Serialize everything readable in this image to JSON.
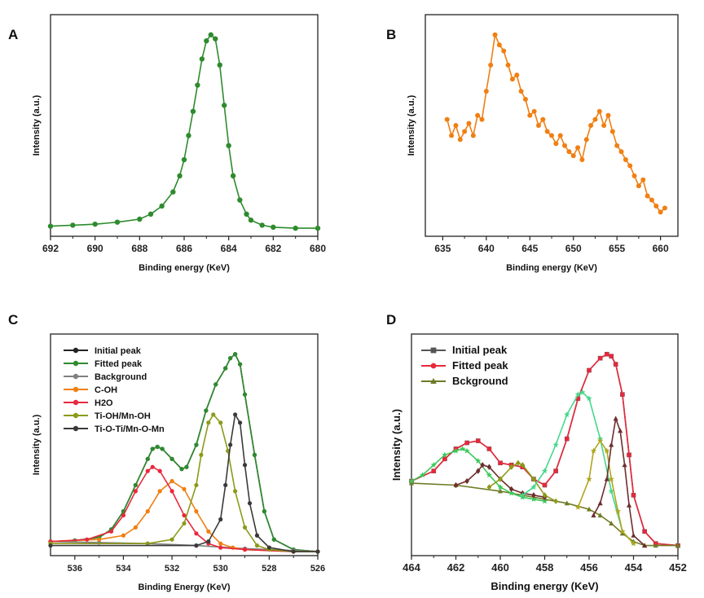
{
  "colors": {
    "green": "#2e8b2e",
    "orange": "#f07f12",
    "black": "#222222",
    "grey": "#808080",
    "red": "#e8283c",
    "olive": "#8c9a1a",
    "darkgrey": "#3a3a3a",
    "teal_green": "#3cc85a",
    "maroon": "#6e2e2e",
    "olive_dark": "#6f7a25",
    "mint": "#46d88c",
    "gold": "#b0a51e",
    "steel": "#4a6fb0"
  },
  "chart_data": [
    {
      "panel": "A",
      "type": "line",
      "xlabel": "Binding energy (KeV)",
      "ylabel": "Intensity (a.u.)",
      "xlim": [
        692,
        680
      ],
      "xticks": [
        692,
        690,
        688,
        686,
        684,
        682,
        680
      ],
      "ylim": [
        0,
        1.1
      ],
      "series": [
        {
          "color": "#2e8b2e",
          "marker": "circle",
          "x": [
            692,
            691,
            690,
            689,
            688,
            687.5,
            687,
            686.5,
            686.2,
            686,
            685.8,
            685.6,
            685.4,
            685.2,
            685,
            684.8,
            684.6,
            684.4,
            684.2,
            684,
            683.8,
            683.5,
            683.2,
            683,
            682.5,
            682,
            681,
            680
          ],
          "y": [
            0.05,
            0.055,
            0.06,
            0.07,
            0.085,
            0.11,
            0.15,
            0.22,
            0.3,
            0.38,
            0.5,
            0.62,
            0.75,
            0.88,
            0.97,
            1.0,
            0.98,
            0.85,
            0.65,
            0.45,
            0.3,
            0.18,
            0.11,
            0.08,
            0.055,
            0.045,
            0.04,
            0.04
          ]
        }
      ]
    },
    {
      "panel": "B",
      "type": "line",
      "xlabel": "Binding energy (KeV)",
      "ylabel": "Intensity (a.u.)",
      "xlim": [
        633,
        662
      ],
      "xticks": [
        635,
        640,
        645,
        650,
        655,
        660
      ],
      "ylim": [
        0,
        1.1
      ],
      "series": [
        {
          "color": "#f07f12",
          "marker": "circle",
          "x": [
            635.5,
            636,
            636.5,
            637,
            637.5,
            638,
            638.5,
            639,
            639.5,
            640,
            640.5,
            641,
            641.5,
            642,
            642.5,
            643,
            643.5,
            644,
            644.5,
            645,
            645.5,
            646,
            646.5,
            647,
            647.5,
            648,
            648.5,
            649,
            649.5,
            650,
            650.5,
            651,
            651.5,
            652,
            652.5,
            653,
            653.5,
            654,
            654.5,
            655,
            655.5,
            656,
            656.5,
            657,
            657.5,
            658,
            658.5,
            659,
            659.5,
            660,
            660.5
          ],
          "y": [
            0.58,
            0.5,
            0.55,
            0.48,
            0.52,
            0.56,
            0.5,
            0.6,
            0.58,
            0.72,
            0.85,
            1.0,
            0.95,
            0.92,
            0.85,
            0.78,
            0.8,
            0.72,
            0.68,
            0.6,
            0.62,
            0.55,
            0.58,
            0.52,
            0.5,
            0.46,
            0.5,
            0.45,
            0.42,
            0.4,
            0.44,
            0.38,
            0.48,
            0.55,
            0.58,
            0.62,
            0.55,
            0.6,
            0.52,
            0.45,
            0.42,
            0.38,
            0.35,
            0.3,
            0.25,
            0.28,
            0.2,
            0.18,
            0.15,
            0.12,
            0.14
          ]
        }
      ]
    },
    {
      "panel": "C",
      "type": "line",
      "xlabel": "Binding Energy (KeV)",
      "ylabel": "Intensity (a.u.)",
      "xlim": [
        537,
        526
      ],
      "xticks": [
        536,
        534,
        532,
        530,
        528,
        526
      ],
      "ylim": [
        0,
        1.1
      ],
      "legend_position": "top-left",
      "series": [
        {
          "name": "Initial peak",
          "color": "#222222",
          "x": [
            537,
            536,
            535,
            534.5,
            534,
            533.5,
            533,
            532.8,
            532.6,
            532.4,
            532,
            531.6,
            531.4,
            531,
            530.6,
            530.2,
            529.8,
            529.6,
            529.4,
            529.2,
            529,
            528.6,
            528.2,
            527.8,
            527,
            526
          ],
          "y": [
            0.07,
            0.075,
            0.09,
            0.13,
            0.22,
            0.35,
            0.48,
            0.53,
            0.54,
            0.53,
            0.48,
            0.43,
            0.44,
            0.55,
            0.72,
            0.85,
            0.93,
            0.98,
            1.0,
            0.95,
            0.8,
            0.5,
            0.22,
            0.08,
            0.03,
            0.02
          ]
        },
        {
          "name": "Fitted peak",
          "color": "#2e8b2e",
          "x": [
            537,
            536,
            535,
            534.5,
            534,
            533.5,
            533,
            532.8,
            532.6,
            532.4,
            532,
            531.6,
            531.4,
            531,
            530.6,
            530.2,
            529.8,
            529.6,
            529.4,
            529.2,
            529,
            528.6,
            528.2,
            527.8,
            527,
            526
          ],
          "y": [
            0.07,
            0.075,
            0.09,
            0.13,
            0.22,
            0.35,
            0.48,
            0.53,
            0.54,
            0.53,
            0.48,
            0.43,
            0.44,
            0.55,
            0.72,
            0.85,
            0.93,
            0.98,
            1.0,
            0.95,
            0.8,
            0.5,
            0.22,
            0.08,
            0.03,
            0.02
          ]
        },
        {
          "name": "Background",
          "color": "#808080",
          "x": [
            537,
            535,
            533,
            531,
            529,
            527,
            526
          ],
          "y": [
            0.07,
            0.065,
            0.06,
            0.05,
            0.035,
            0.025,
            0.02
          ]
        },
        {
          "name": "C-OH",
          "color": "#f07f12",
          "x": [
            537,
            535,
            534,
            533.5,
            533,
            532.5,
            532,
            531.5,
            531,
            530.5,
            530,
            529.5,
            529,
            527,
            526
          ],
          "y": [
            0.07,
            0.08,
            0.1,
            0.14,
            0.22,
            0.32,
            0.37,
            0.33,
            0.22,
            0.12,
            0.06,
            0.04,
            0.03,
            0.02,
            0.02
          ]
        },
        {
          "name": "H2O",
          "color": "#e8283c",
          "x": [
            537,
            535.5,
            534.5,
            534,
            533.5,
            533,
            532.8,
            532.5,
            532,
            531.5,
            531,
            530.5,
            530,
            529,
            527,
            526
          ],
          "y": [
            0.07,
            0.08,
            0.12,
            0.2,
            0.32,
            0.42,
            0.44,
            0.42,
            0.32,
            0.2,
            0.11,
            0.06,
            0.04,
            0.03,
            0.02,
            0.02
          ]
        },
        {
          "name": "Ti-OH/Mn-OH",
          "color": "#8c9a1a",
          "x": [
            537,
            533,
            532,
            531.5,
            531,
            530.8,
            530.5,
            530.3,
            530,
            529.7,
            529.4,
            529,
            528.5,
            528,
            527,
            526
          ],
          "y": [
            0.06,
            0.06,
            0.08,
            0.16,
            0.35,
            0.5,
            0.66,
            0.7,
            0.66,
            0.52,
            0.32,
            0.14,
            0.05,
            0.03,
            0.02,
            0.02
          ]
        },
        {
          "name": "Ti-O-Ti/Mn-O-Mn",
          "color": "#3a3a3a",
          "x": [
            537,
            531,
            530.5,
            530,
            529.8,
            529.6,
            529.4,
            529.2,
            529,
            528.8,
            528.5,
            528,
            527,
            526
          ],
          "y": [
            0.05,
            0.05,
            0.07,
            0.18,
            0.35,
            0.55,
            0.7,
            0.66,
            0.45,
            0.26,
            0.1,
            0.04,
            0.02,
            0.02
          ]
        }
      ]
    },
    {
      "panel": "D",
      "type": "line",
      "xlabel": "Binding energy (KeV)",
      "ylabel": "Intensity (a.u.)",
      "xlim": [
        464,
        452
      ],
      "xticks": [
        464,
        462,
        460,
        458,
        456,
        454,
        452
      ],
      "ylim": [
        0,
        1.1
      ],
      "legend_position": "top-left",
      "series": [
        {
          "name": "Initial peak",
          "color": "#555555",
          "marker": "square",
          "x": [
            464,
            463,
            462.5,
            462,
            461.5,
            461,
            460.5,
            460,
            459.5,
            459,
            458.5,
            458,
            457.5,
            457,
            456.5,
            456,
            455.5,
            455.2,
            455,
            454.8,
            454.5,
            454.2,
            454,
            453.5,
            453,
            452
          ],
          "y": [
            0.37,
            0.42,
            0.48,
            0.53,
            0.56,
            0.57,
            0.53,
            0.46,
            0.45,
            0.44,
            0.38,
            0.35,
            0.42,
            0.58,
            0.78,
            0.92,
            0.98,
            1.0,
            0.99,
            0.95,
            0.8,
            0.5,
            0.3,
            0.12,
            0.06,
            0.05
          ]
        },
        {
          "name": "Fitted peak",
          "color": "#e8283c",
          "marker": "circle",
          "x": [
            464,
            463,
            462.5,
            462,
            461.5,
            461,
            460.5,
            460,
            459.5,
            459,
            458.5,
            458,
            457.5,
            457,
            456.5,
            456,
            455.5,
            455.2,
            455,
            454.8,
            454.5,
            454.2,
            454,
            453.5,
            453,
            452
          ],
          "y": [
            0.37,
            0.42,
            0.48,
            0.53,
            0.56,
            0.57,
            0.53,
            0.46,
            0.45,
            0.44,
            0.38,
            0.35,
            0.42,
            0.58,
            0.78,
            0.92,
            0.98,
            1.0,
            0.99,
            0.95,
            0.8,
            0.5,
            0.3,
            0.12,
            0.06,
            0.05
          ]
        },
        {
          "name": "Bckground",
          "color": "#6f7a25",
          "marker": "triangle",
          "x": [
            464,
            462,
            460,
            458,
            457,
            456,
            455.5,
            455,
            454.5,
            454,
            453.5,
            453,
            452
          ],
          "y": [
            0.36,
            0.35,
            0.32,
            0.28,
            0.26,
            0.23,
            0.2,
            0.16,
            0.11,
            0.07,
            0.05,
            0.05,
            0.05
          ]
        },
        {
          "color": "#3cc85a",
          "marker": "star",
          "x": [
            464,
            463.5,
            463,
            462.5,
            462,
            461.7,
            461.5,
            461,
            460.5,
            460,
            459.5,
            459,
            458.5,
            458
          ],
          "y": [
            0.37,
            0.4,
            0.45,
            0.5,
            0.52,
            0.53,
            0.52,
            0.47,
            0.4,
            0.34,
            0.31,
            0.29,
            0.28,
            0.27
          ]
        },
        {
          "color": "#6e2e2e",
          "marker": "diamond",
          "x": [
            462,
            461.5,
            461,
            460.8,
            460.5,
            460,
            459.5,
            459,
            458.5,
            458
          ],
          "y": [
            0.35,
            0.37,
            0.42,
            0.45,
            0.44,
            0.38,
            0.33,
            0.31,
            0.3,
            0.29
          ]
        },
        {
          "color": "#8c9a1a",
          "marker": "diamond",
          "x": [
            460.5,
            460,
            459.5,
            459.2,
            459,
            458.5,
            458,
            457.5
          ],
          "y": [
            0.34,
            0.38,
            0.44,
            0.46,
            0.45,
            0.38,
            0.3,
            0.27
          ]
        },
        {
          "color": "#46d88c",
          "marker": "star",
          "x": [
            459,
            458.5,
            458,
            457.5,
            457,
            456.5,
            456.3,
            456,
            455.5,
            455,
            454.5,
            454
          ],
          "y": [
            0.3,
            0.34,
            0.42,
            0.55,
            0.7,
            0.8,
            0.81,
            0.78,
            0.58,
            0.32,
            0.12,
            0.06
          ]
        },
        {
          "color": "#b0a51e",
          "marker": "star",
          "x": [
            456.5,
            456,
            455.8,
            455.5,
            455.2,
            455,
            454.7,
            454.5,
            454
          ],
          "y": [
            0.24,
            0.38,
            0.52,
            0.57,
            0.52,
            0.38,
            0.22,
            0.12,
            0.06
          ]
        },
        {
          "color": "#6e2e2e",
          "marker": "triangle",
          "x": [
            455.8,
            455.5,
            455.2,
            455,
            454.8,
            454.6,
            454.4,
            454.2,
            454,
            453.5
          ],
          "y": [
            0.2,
            0.26,
            0.38,
            0.55,
            0.68,
            0.62,
            0.45,
            0.25,
            0.1,
            0.05
          ]
        }
      ]
    }
  ]
}
